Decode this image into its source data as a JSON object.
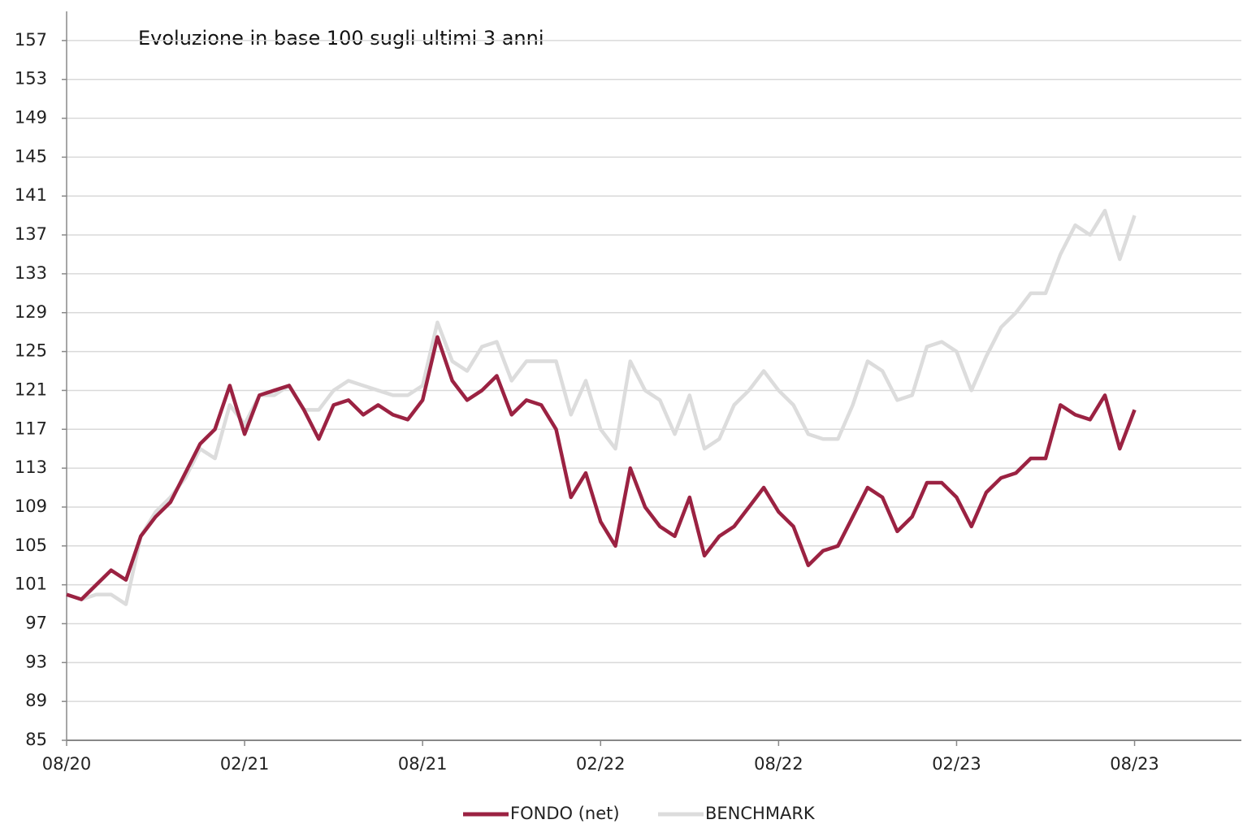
{
  "chart_data": {
    "type": "line",
    "title": "Evoluzione in base 100 sugli ultimi 3 anni",
    "x": [
      0,
      0.5,
      1,
      1.5,
      2,
      2.5,
      3,
      3.5,
      4,
      4.5,
      5,
      5.5,
      6,
      6.5,
      7,
      7.5,
      8,
      8.5,
      9,
      9.5,
      10,
      10.5,
      11,
      11.5,
      12,
      12.5,
      13,
      13.5,
      14,
      14.5,
      15,
      15.5,
      16,
      16.5,
      17,
      17.5,
      18,
      18.5,
      19,
      19.5,
      20,
      20.5,
      21,
      21.5,
      22,
      22.5,
      23,
      23.5,
      24,
      24.5,
      25,
      25.5,
      26,
      26.5,
      27,
      27.5,
      28,
      28.5,
      29,
      29.5,
      30,
      30.5,
      31,
      31.5,
      32,
      32.5,
      33,
      33.5,
      34,
      34.5,
      35,
      35.5,
      36
    ],
    "series": [
      {
        "name": "FONDO (net)",
        "color": "#9b2242",
        "values": [
          100,
          99.5,
          101,
          102.5,
          101.5,
          106,
          108,
          109.5,
          112.5,
          115.5,
          117,
          121.5,
          116.5,
          120.5,
          121,
          121.5,
          119,
          116,
          119.5,
          120,
          118.5,
          119.5,
          118.5,
          118,
          120,
          126.5,
          122,
          120,
          121,
          122.5,
          118.5,
          120,
          119.5,
          117,
          110,
          112.5,
          107.5,
          105,
          113,
          109,
          107,
          106,
          110,
          104,
          106,
          107,
          109,
          111,
          108.5,
          107,
          103,
          104.5,
          105,
          108,
          111,
          110,
          106.5,
          108,
          111.5,
          111.5,
          110,
          107,
          110.5,
          112,
          112.5,
          114,
          114,
          119.5,
          118.5,
          118,
          120.5,
          115,
          119
        ]
      },
      {
        "name": "BENCHMARK",
        "color": "#dcdcdc",
        "values": [
          100,
          99.5,
          100,
          100,
          99,
          106,
          108.5,
          110,
          112,
          115,
          114,
          119.5,
          117.5,
          120.5,
          120.5,
          121.5,
          119,
          119,
          121,
          122,
          121.5,
          121,
          120.5,
          120.5,
          121.5,
          128,
          124,
          123,
          125.5,
          126,
          122,
          124,
          124,
          124,
          118.5,
          122,
          117,
          115,
          124,
          121,
          120,
          116.5,
          120.5,
          115,
          116,
          119.5,
          121,
          123,
          121,
          119.5,
          116.5,
          116,
          116,
          119.5,
          124,
          123,
          120,
          120.5,
          125.5,
          126,
          125,
          121,
          124.5,
          127.5,
          129,
          131,
          131,
          135,
          138,
          137,
          139.5,
          134.5,
          139
        ]
      }
    ],
    "xlim": [
      0,
      39.6
    ],
    "xticks": [
      {
        "value": 0,
        "label": "08/20"
      },
      {
        "value": 6,
        "label": "02/21"
      },
      {
        "value": 12,
        "label": "08/21"
      },
      {
        "value": 18,
        "label": "02/22"
      },
      {
        "value": 24,
        "label": "08/22"
      },
      {
        "value": 30,
        "label": "02/23"
      },
      {
        "value": 36,
        "label": "08/23"
      }
    ],
    "ylim": [
      85,
      160
    ],
    "yticks": [
      85,
      89,
      93,
      97,
      101,
      105,
      109,
      113,
      117,
      121,
      125,
      129,
      133,
      137,
      141,
      145,
      149,
      153,
      157
    ],
    "grid": true,
    "legend": "bottom"
  }
}
